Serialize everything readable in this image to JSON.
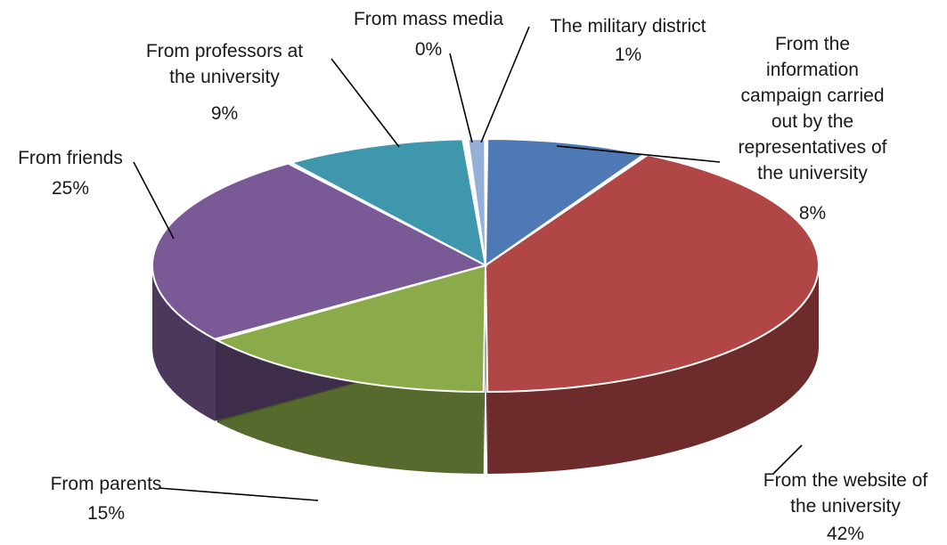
{
  "chart_data": {
    "type": "pie",
    "title": "",
    "slices": [
      {
        "label": "From the information campaign carried out by the representatives of the university",
        "value": 8,
        "display": "8%",
        "color": "#4f79b4"
      },
      {
        "label": "From the website of the university",
        "value": 42,
        "display": "42%",
        "color": "#b04746"
      },
      {
        "label": "From parents",
        "value": 15,
        "display": "15%",
        "color": "#8bab4a"
      },
      {
        "label": "From friends",
        "value": 25,
        "display": "25%",
        "color": "#7a5a96"
      },
      {
        "label": "From professors at the university",
        "value": 9,
        "display": "9%",
        "color": "#3f97ae"
      },
      {
        "label": "From mass media",
        "value": 0,
        "display": "0%",
        "color": "#c0504d"
      },
      {
        "label": "The military district",
        "value": 1,
        "display": "1%",
        "color": "#94b0d8"
      }
    ],
    "legend": "none",
    "labels_position": "outside-with-leader-lines"
  }
}
